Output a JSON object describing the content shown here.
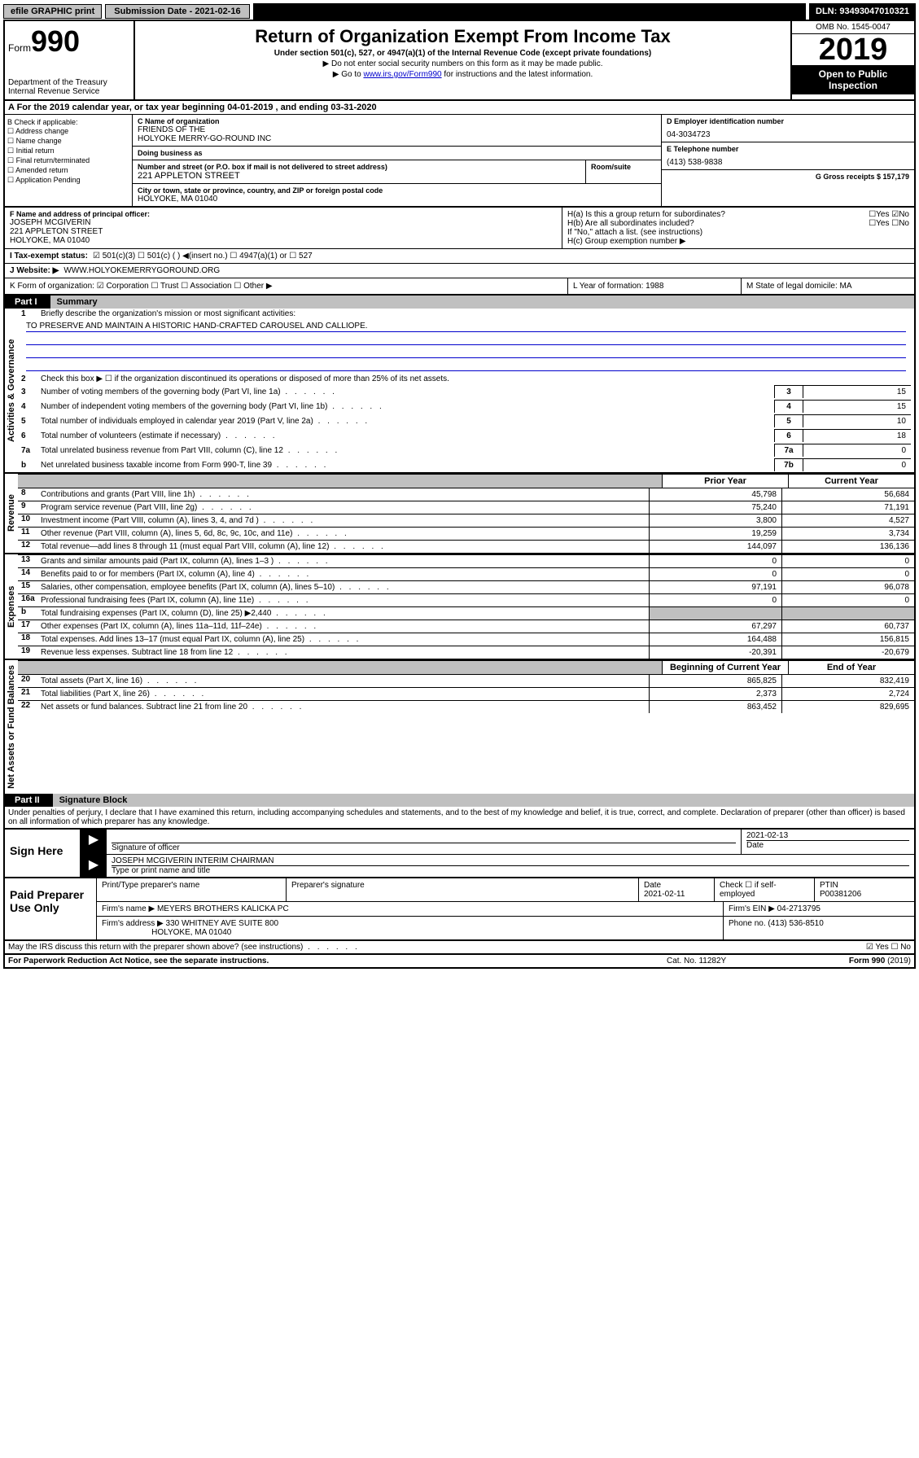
{
  "topbar": {
    "efile": "efile GRAPHIC print",
    "submission": "Submission Date - 2021-02-16",
    "dln": "DLN: 93493047010321"
  },
  "header": {
    "form_word": "Form",
    "form_num": "990",
    "dept1": "Department of the Treasury",
    "dept2": "Internal Revenue Service",
    "title": "Return of Organization Exempt From Income Tax",
    "subtitle": "Under section 501(c), 527, or 4947(a)(1) of the Internal Revenue Code (except private foundations)",
    "note1": "▶ Do not enter social security numbers on this form as it may be made public.",
    "note2_pre": "▶ Go to ",
    "note2_link": "www.irs.gov/Form990",
    "note2_post": " for instructions and the latest information.",
    "omb": "OMB No. 1545-0047",
    "year": "2019",
    "open": "Open to Public Inspection"
  },
  "row_a": "A For the 2019 calendar year, or tax year beginning 04-01-2019   , and ending 03-31-2020",
  "box_b": {
    "title": "B Check if applicable:",
    "items": [
      "☐ Address change",
      "☐ Name change",
      "☐ Initial return",
      "☐ Final return/terminated",
      "☐ Amended return",
      "☐ Application Pending"
    ]
  },
  "box_c": {
    "name_label": "C Name of organization",
    "name1": "FRIENDS OF THE",
    "name2": "HOLYOKE MERRY-GO-ROUND INC",
    "dba_label": "Doing business as",
    "addr_label": "Number and street (or P.O. box if mail is not delivered to street address)",
    "room_label": "Room/suite",
    "addr": "221 APPLETON STREET",
    "city_label": "City or town, state or province, country, and ZIP or foreign postal code",
    "city": "HOLYOKE, MA  01040"
  },
  "box_d": {
    "label": "D Employer identification number",
    "value": "04-3034723"
  },
  "box_e": {
    "label": "E Telephone number",
    "value": "(413) 538-9838"
  },
  "box_g": {
    "label": "G Gross receipts $ 157,179"
  },
  "box_f": {
    "label": "F  Name and address of principal officer:",
    "name": "JOSEPH MCGIVERIN",
    "addr1": "221 APPLETON STREET",
    "addr2": "HOLYOKE, MA  01040"
  },
  "box_h": {
    "a": "H(a)  Is this a group return for subordinates?",
    "a_ans": "☐Yes ☑No",
    "b": "H(b)  Are all subordinates included?",
    "b_ans": "☐Yes ☐No",
    "b_note": "If \"No,\" attach a list. (see instructions)",
    "c": "H(c)  Group exemption number ▶"
  },
  "row_i": {
    "label": "I     Tax-exempt status:",
    "opts": "☑ 501(c)(3)   ☐ 501(c) (  ) ◀(insert no.)   ☐ 4947(a)(1) or   ☐ 527"
  },
  "row_j": {
    "label": "J    Website: ▶",
    "value": "  WWW.HOLYOKEMERRYGOROUND.ORG"
  },
  "row_k": {
    "k": "K Form of organization:  ☑ Corporation  ☐ Trust  ☐ Association  ☐ Other ▶",
    "l": "L Year of formation: 1988",
    "m": "M State of legal domicile: MA"
  },
  "part1": {
    "label": "Part I",
    "title": "Summary"
  },
  "summary": {
    "governance_label": "Activities & Governance",
    "revenue_label": "Revenue",
    "expenses_label": "Expenses",
    "netassets_label": "Net Assets or Fund Balances",
    "line1_label": "Briefly describe the organization's mission or most significant activities:",
    "line1_text": "TO PRESERVE AND MAINTAIN A HISTORIC HAND-CRAFTED CAROUSEL AND CALLIOPE.",
    "line2": "Check this box ▶ ☐  if the organization discontinued its operations or disposed of more than 25% of its net assets.",
    "lines_single": [
      {
        "n": "3",
        "t": "Number of voting members of the governing body (Part VI, line 1a)",
        "box": "3",
        "val": "15"
      },
      {
        "n": "4",
        "t": "Number of independent voting members of the governing body (Part VI, line 1b)",
        "box": "4",
        "val": "15"
      },
      {
        "n": "5",
        "t": "Total number of individuals employed in calendar year 2019 (Part V, line 2a)",
        "box": "5",
        "val": "10"
      },
      {
        "n": "6",
        "t": "Total number of volunteers (estimate if necessary)",
        "box": "6",
        "val": "18"
      },
      {
        "n": "7a",
        "t": "Total unrelated business revenue from Part VIII, column (C), line 12",
        "box": "7a",
        "val": "0"
      },
      {
        "n": "b",
        "t": "Net unrelated business taxable income from Form 990-T, line 39",
        "box": "7b",
        "val": "0"
      }
    ],
    "prior_year": "Prior Year",
    "current_year": "Current Year",
    "beginning": "Beginning of Current Year",
    "end": "End of Year",
    "revenue_lines": [
      {
        "n": "8",
        "t": "Contributions and grants (Part VIII, line 1h)",
        "py": "45,798",
        "cy": "56,684"
      },
      {
        "n": "9",
        "t": "Program service revenue (Part VIII, line 2g)",
        "py": "75,240",
        "cy": "71,191"
      },
      {
        "n": "10",
        "t": "Investment income (Part VIII, column (A), lines 3, 4, and 7d )",
        "py": "3,800",
        "cy": "4,527"
      },
      {
        "n": "11",
        "t": "Other revenue (Part VIII, column (A), lines 5, 6d, 8c, 9c, 10c, and 11e)",
        "py": "19,259",
        "cy": "3,734"
      },
      {
        "n": "12",
        "t": "Total revenue—add lines 8 through 11 (must equal Part VIII, column (A), line 12)",
        "py": "144,097",
        "cy": "136,136"
      }
    ],
    "expense_lines": [
      {
        "n": "13",
        "t": "Grants and similar amounts paid (Part IX, column (A), lines 1–3 )",
        "py": "0",
        "cy": "0"
      },
      {
        "n": "14",
        "t": "Benefits paid to or for members (Part IX, column (A), line 4)",
        "py": "0",
        "cy": "0"
      },
      {
        "n": "15",
        "t": "Salaries, other compensation, employee benefits (Part IX, column (A), lines 5–10)",
        "py": "97,191",
        "cy": "96,078"
      },
      {
        "n": "16a",
        "t": "Professional fundraising fees (Part IX, column (A), line 11e)",
        "py": "0",
        "cy": "0"
      },
      {
        "n": "b",
        "t": "Total fundraising expenses (Part IX, column (D), line 25) ▶2,440",
        "py": "",
        "cy": "",
        "gray": true
      },
      {
        "n": "17",
        "t": "Other expenses (Part IX, column (A), lines 11a–11d, 11f–24e)",
        "py": "67,297",
        "cy": "60,737"
      },
      {
        "n": "18",
        "t": "Total expenses. Add lines 13–17 (must equal Part IX, column (A), line 25)",
        "py": "164,488",
        "cy": "156,815"
      },
      {
        "n": "19",
        "t": "Revenue less expenses. Subtract line 18 from line 12",
        "py": "-20,391",
        "cy": "-20,679"
      }
    ],
    "netasset_lines": [
      {
        "n": "20",
        "t": "Total assets (Part X, line 16)",
        "py": "865,825",
        "cy": "832,419"
      },
      {
        "n": "21",
        "t": "Total liabilities (Part X, line 26)",
        "py": "2,373",
        "cy": "2,724"
      },
      {
        "n": "22",
        "t": "Net assets or fund balances. Subtract line 21 from line 20",
        "py": "863,452",
        "cy": "829,695"
      }
    ]
  },
  "part2": {
    "label": "Part II",
    "title": "Signature Block"
  },
  "perjury": "Under penalties of perjury, I declare that I have examined this return, including accompanying schedules and statements, and to the best of my knowledge and belief, it is true, correct, and complete. Declaration of preparer (other than officer) is based on all information of which preparer has any knowledge.",
  "signhere": {
    "label": "Sign Here",
    "sig_of_officer": "Signature of officer",
    "date": "2021-02-13",
    "date_label": "Date",
    "name": "JOSEPH MCGIVERIN  INTERIM CHAIRMAN",
    "name_label": "Type or print name and title"
  },
  "paid": {
    "label": "Paid Preparer Use Only",
    "h1": "Print/Type preparer's name",
    "h2": "Preparer's signature",
    "h3": "Date",
    "date": "2021-02-11",
    "h4": "Check ☐ if self-employed",
    "h5": "PTIN",
    "ptin": "P00381206",
    "firm_label": "Firm's name    ▶",
    "firm_name": "MEYERS BROTHERS KALICKA PC",
    "ein_label": "Firm's EIN ▶",
    "ein": "04-2713795",
    "addr_label": "Firm's address ▶",
    "addr1": "330 WHITNEY AVE SUITE 800",
    "addr2": "HOLYOKE, MA  01040",
    "phone_label": "Phone no.",
    "phone": "(413) 536-8510"
  },
  "discuss": {
    "q": "May the IRS discuss this return with the preparer shown above? (see instructions)",
    "ans": "☑ Yes   ☐ No"
  },
  "footer": {
    "left": "For Paperwork Reduction Act Notice, see the separate instructions.",
    "mid": "Cat. No. 11282Y",
    "right": "Form 990 (2019)"
  }
}
